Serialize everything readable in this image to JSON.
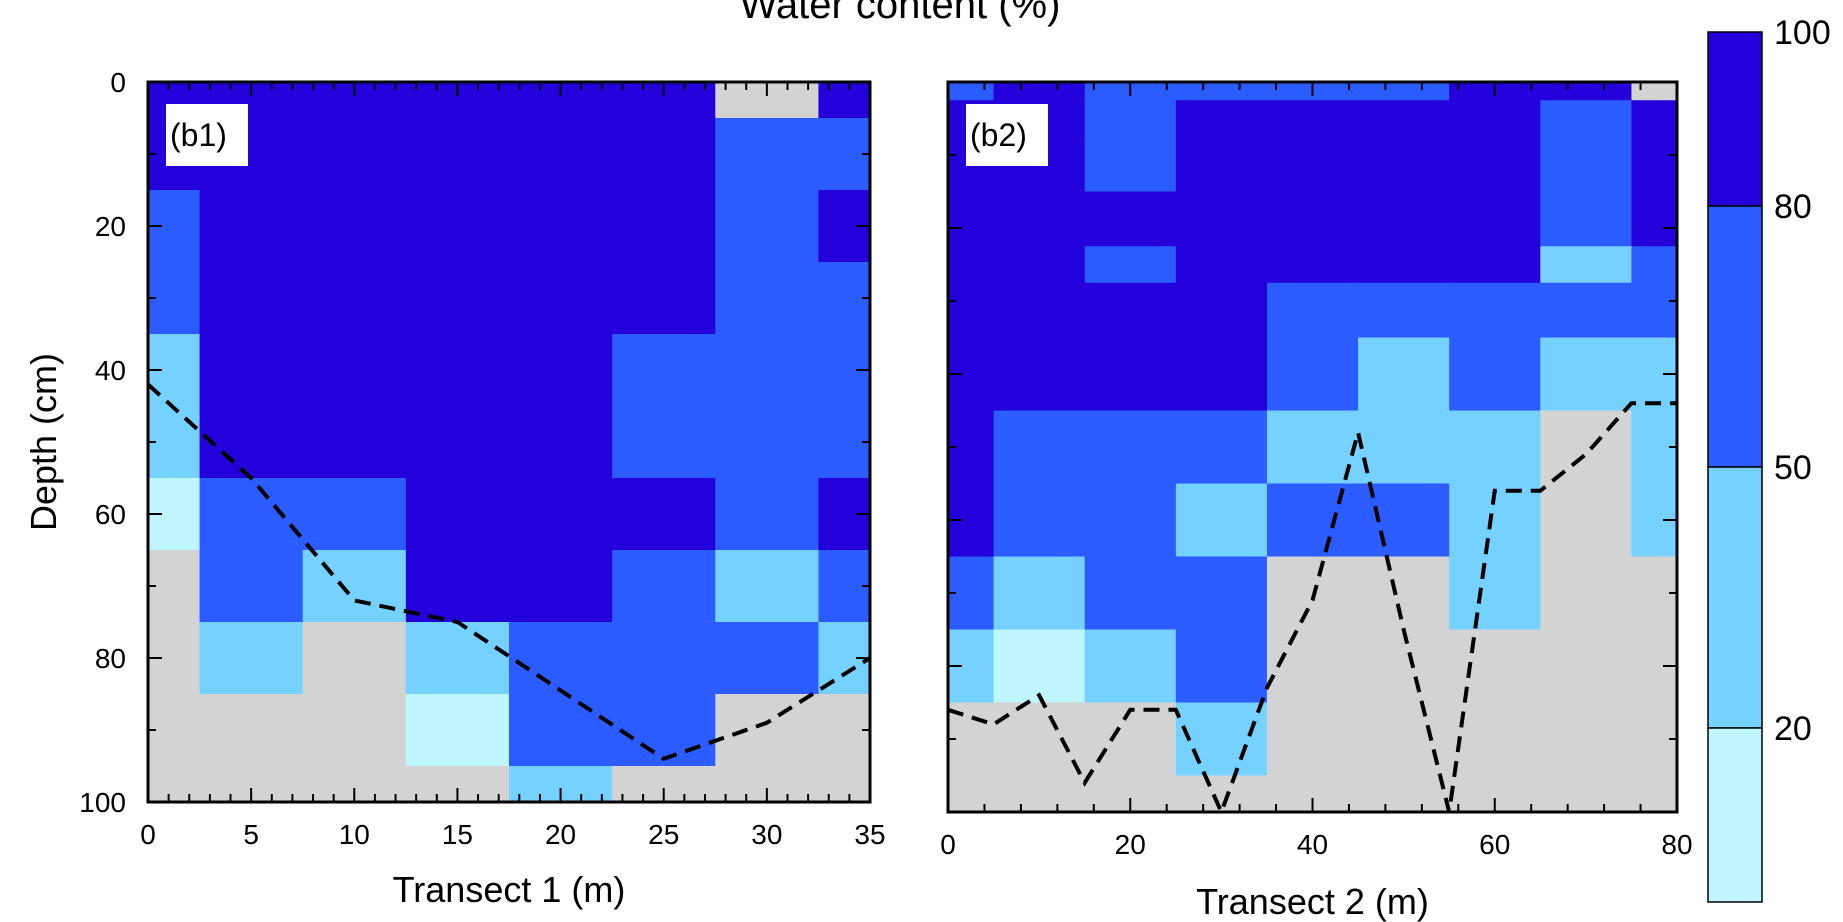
{
  "title": "Water content (%)",
  "colors": {
    "missing": "#d3d3d3",
    "classes": [
      "#bff5fc",
      "#75d1ff",
      "#2b5cff",
      "#2400db"
    ]
  },
  "colorbar": {
    "boundaries": [
      20,
      50,
      80,
      100
    ],
    "labels": [
      "20",
      "50",
      "80",
      "100"
    ]
  },
  "chart_data": [
    {
      "type": "heatmap",
      "panel_label": "(b1)",
      "xlabel": "Transect 1 (m)",
      "ylabel": "Depth (cm)",
      "xlim": [
        0,
        35
      ],
      "ylim": [
        100,
        0
      ],
      "xticks": [
        0,
        5,
        10,
        15,
        20,
        25,
        30,
        35
      ],
      "yticks": [
        0,
        20,
        40,
        60,
        80,
        100
      ],
      "x_centers": [
        0,
        5,
        10,
        15,
        20,
        25,
        30,
        35
      ],
      "depth_centers": [
        0,
        10,
        20,
        30,
        40,
        50,
        60,
        70,
        80,
        90,
        100
      ],
      "class_key": "0 = no data, 1 = below 20, 2 = 20-50, 3 = 50-80, 4 = 80-100",
      "classes": [
        [
          4,
          4,
          4,
          4,
          4,
          4,
          0,
          4
        ],
        [
          4,
          4,
          4,
          4,
          4,
          4,
          3,
          3
        ],
        [
          3,
          4,
          4,
          4,
          4,
          4,
          3,
          4
        ],
        [
          3,
          4,
          4,
          4,
          4,
          4,
          3,
          3
        ],
        [
          2,
          4,
          4,
          4,
          4,
          3,
          3,
          3
        ],
        [
          2,
          4,
          4,
          4,
          4,
          3,
          3,
          3
        ],
        [
          1,
          3,
          3,
          4,
          4,
          4,
          3,
          4
        ],
        [
          0,
          3,
          2,
          4,
          4,
          3,
          2,
          3
        ],
        [
          0,
          2,
          0,
          2,
          3,
          3,
          3,
          2
        ],
        [
          0,
          0,
          0,
          1,
          3,
          3,
          0,
          0
        ],
        [
          0,
          0,
          0,
          0,
          2,
          0,
          0,
          0
        ]
      ],
      "dashed_line": {
        "x": [
          0,
          5,
          10,
          15,
          25,
          30,
          35
        ],
        "y": [
          42,
          55,
          72,
          75,
          94,
          89,
          80
        ]
      }
    },
    {
      "type": "heatmap",
      "panel_label": "(b2)",
      "xlabel": "Transect 2 (m)",
      "ylabel": "",
      "xlim": [
        0,
        80
      ],
      "ylim": [
        100,
        0
      ],
      "xticks": [
        0,
        20,
        40,
        60,
        80
      ],
      "yticks": [
        0,
        20,
        40,
        60,
        80,
        100
      ],
      "x_centers": [
        0,
        10,
        20,
        30,
        40,
        50,
        60,
        70,
        80
      ],
      "depth_centers": [
        0,
        10,
        20,
        30,
        40,
        50,
        60,
        70,
        80,
        90,
        100
      ],
      "class_key": "0 = no data, 1 = below 20, 2 = 20-50, 3 = 50-80, 4 = 80-100",
      "classes": [
        [
          3,
          4,
          3,
          3,
          3,
          3,
          4,
          4,
          0
        ],
        [
          4,
          4,
          3,
          4,
          4,
          4,
          4,
          3,
          4
        ],
        [
          4,
          4,
          3,
          4,
          4,
          4,
          4,
          3,
          4
        ],
        [
          4,
          4,
          4,
          4,
          4,
          4,
          4,
          3,
          4
        ],
        [
          4,
          4,
          3,
          4,
          4,
          4,
          4,
          2,
          3
        ],
        [
          4,
          4,
          4,
          4,
          3,
          3,
          3,
          3,
          3
        ],
        [
          4,
          4,
          4,
          4,
          3,
          2,
          3,
          2,
          2
        ],
        [
          4,
          3,
          3,
          3,
          2,
          2,
          2,
          0,
          2
        ],
        [
          4,
          3,
          3,
          2,
          3,
          3,
          2,
          0,
          2
        ],
        [
          3,
          2,
          3,
          3,
          0,
          0,
          2,
          0,
          0
        ],
        [
          2,
          1,
          2,
          3,
          0,
          0,
          0,
          0,
          0
        ],
        [
          0,
          0,
          0,
          2,
          0,
          0,
          0,
          0,
          0
        ],
        [
          0,
          0,
          0,
          0,
          0,
          0,
          0,
          0,
          0
        ]
      ],
      "depth_centers_fine": [
        0,
        5,
        10,
        20,
        25,
        30,
        40,
        50,
        60,
        70,
        80,
        90,
        100
      ],
      "dashed_line": {
        "x": [
          0,
          5,
          10,
          15,
          20,
          25,
          30,
          35,
          40,
          45,
          50,
          55,
          60,
          65,
          70,
          75,
          80
        ],
        "y": [
          86,
          88,
          84,
          96,
          86,
          86,
          101,
          83,
          71,
          48,
          75,
          101,
          56,
          56,
          51,
          44,
          44
        ]
      }
    }
  ]
}
